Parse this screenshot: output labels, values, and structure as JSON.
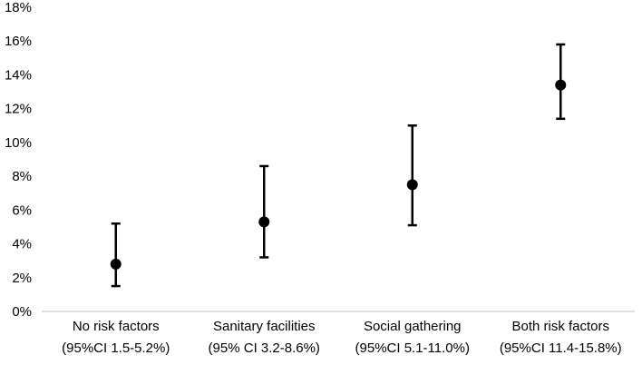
{
  "chart_data": {
    "type": "scatter",
    "title": "",
    "xlabel": "",
    "ylabel": "",
    "ylim": [
      0,
      18
    ],
    "yticks": [
      0,
      2,
      4,
      6,
      8,
      10,
      12,
      14,
      16,
      18
    ],
    "ytick_labels": [
      "0%",
      "2%",
      "4%",
      "6%",
      "8%",
      "10%",
      "12%",
      "14%",
      "16%",
      "18%"
    ],
    "grid": false,
    "legend": "none",
    "marker_color": "#000000",
    "categories": [
      {
        "line1": "No risk factors",
        "line2": "(95%CI 1.5-5.2%)"
      },
      {
        "line1": "Sanitary facilities",
        "line2": "(95% CI 3.2-8.6%)"
      },
      {
        "line1": "Social gathering",
        "line2": "(95%CI 5.1-11.0%)"
      },
      {
        "line1": "Both risk factors",
        "line2": "(95%CI 11.4-15.8%)"
      }
    ],
    "values": [
      2.8,
      5.3,
      7.5,
      13.4
    ],
    "ci_low": [
      1.5,
      3.2,
      5.1,
      11.4
    ],
    "ci_high": [
      5.2,
      8.6,
      11.0,
      15.8
    ]
  }
}
